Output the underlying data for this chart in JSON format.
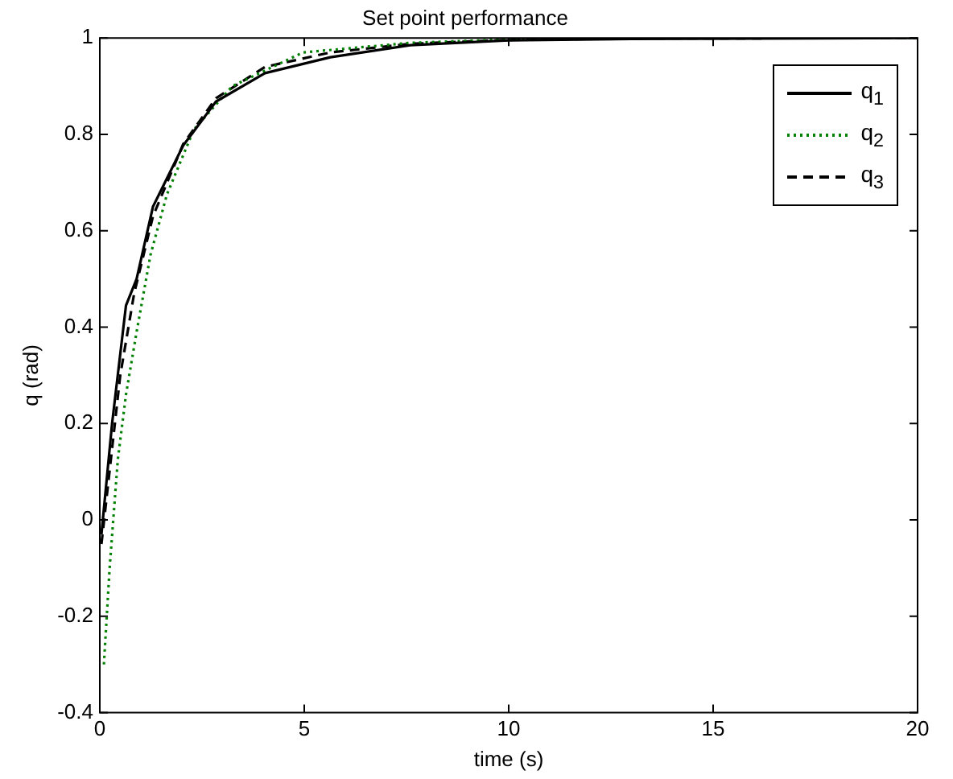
{
  "chart_data": {
    "type": "line",
    "title": "Set point performance",
    "xlabel": "time (s)",
    "ylabel": "q (rad)",
    "xlim": [
      0,
      20
    ],
    "xticks": [
      0,
      5,
      10,
      15,
      20
    ],
    "ylim": [
      -0.4,
      1
    ],
    "yticks": [
      -0.4,
      -0.2,
      0,
      0.2,
      0.4,
      0.6,
      0.8,
      1
    ],
    "grid": false,
    "legend": "top right",
    "marker": "none",
    "series": [
      {
        "name": "q$_{1}$",
        "color": "#000000",
        "line_style": "solid",
        "x": [
          0.04,
          0.3,
          0.64,
          0.9,
          1.3,
          2.04,
          2.84,
          4.04,
          5.64,
          7.6,
          10,
          13,
          20
        ],
        "values": [
          -0.03,
          0.2,
          0.445,
          0.5,
          0.65,
          0.777,
          0.868,
          0.927,
          0.96,
          0.985,
          0.995,
          0.998,
          1
        ]
      },
      {
        "name": "q$_{2}$",
        "color": "#008000",
        "line_style": "dotted",
        "x": [
          0.1,
          0.24,
          0.44,
          0.64,
          0.9,
          1.24,
          1.64,
          2.3,
          3.24,
          4.97,
          7.6,
          10,
          13,
          20
        ],
        "values": [
          -0.3,
          -0.1,
          0.125,
          0.26,
          0.39,
          0.55,
          0.675,
          0.81,
          0.9,
          0.97,
          0.99,
          0.997,
          1,
          1
        ]
      },
      {
        "name": "q$_{3}$",
        "color": "#000000",
        "line_style": "dashed",
        "x": [
          0.04,
          0.5,
          0.84,
          1.3,
          2.04,
          2.84,
          4.04,
          5.64,
          7.6,
          10,
          13,
          20
        ],
        "values": [
          -0.05,
          0.3,
          0.47,
          0.63,
          0.78,
          0.875,
          0.94,
          0.97,
          0.988,
          0.996,
          0.999,
          1
        ]
      }
    ]
  }
}
